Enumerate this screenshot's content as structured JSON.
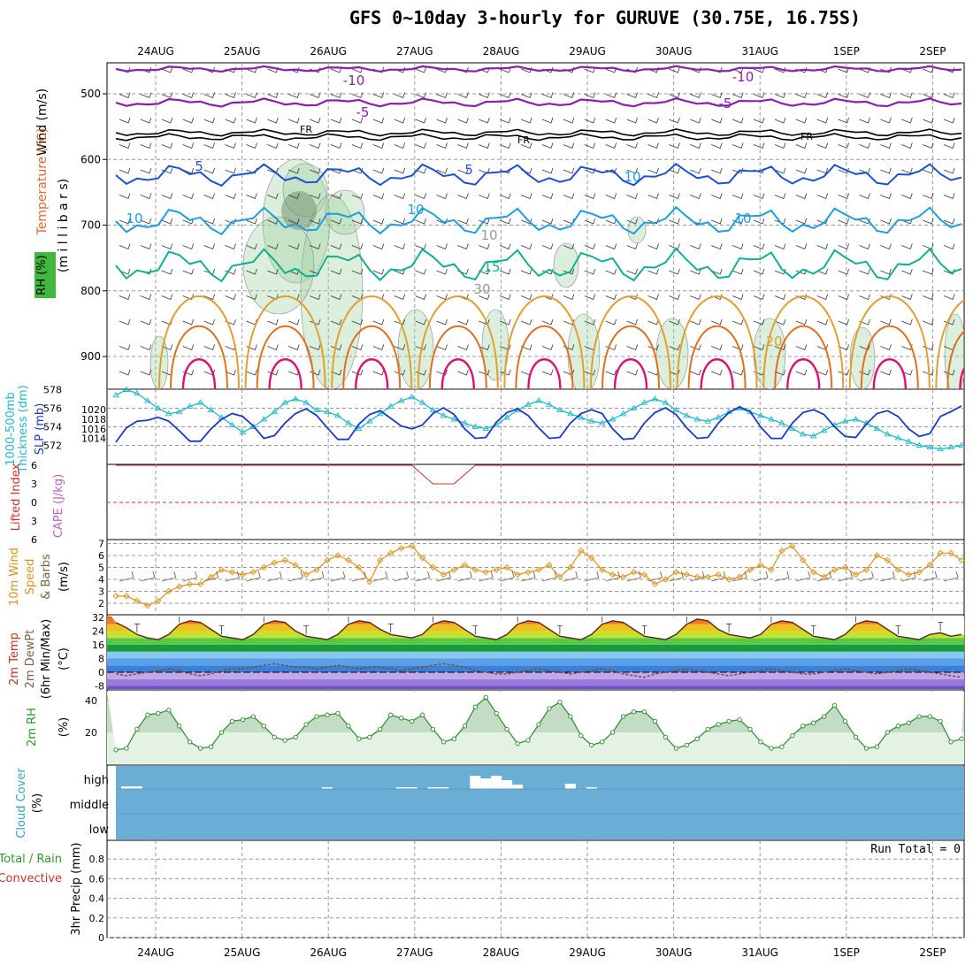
{
  "title": "GFS 0~10day 3-hourly for GURUVE (30.75E, 16.75S)",
  "colors": {
    "temp_m10": "#8a1fb0",
    "temp_m5": "#8a1fb0",
    "fr": "#000000",
    "temp_5": "#1e50d0",
    "temp_10": "#1e9ee0",
    "temp_15": "#10b090",
    "temp_20": "#e0a030",
    "temp_25": "#e07020",
    "temp_30": "#e01070",
    "thickness": "#20b8c8",
    "slp": "#1a3ac8",
    "lifted": "#d03030",
    "wind_speed": "#e0901a",
    "barb_brown": "#7a6040",
    "rh": "#2a9a2a",
    "cloud_bg": "#6aaed6",
    "grid": "#aaaaaa"
  },
  "dates": [
    "24AUG",
    "25AUG",
    "26AUG",
    "27AUG",
    "28AUG",
    "29AUG",
    "30AUG",
    "31AUG",
    "1SEP",
    "2SEP"
  ],
  "panels": {
    "upper": {
      "ylabel_wind": "Wind (m/s)",
      "ylabel_temp": "Temperature (°C)",
      "ylabel_mb": "(m i l l i b a r s)",
      "ylabel_rh": "RH (%)",
      "yticks": [
        "500",
        "600",
        "700",
        "800",
        "900"
      ],
      "contour_labels": [
        "-10",
        "-10",
        "-5",
        "-5",
        "FR",
        "FR",
        "FR",
        "5",
        "5",
        "10",
        "10",
        "10",
        "10",
        "15",
        "20",
        "10",
        "30"
      ]
    },
    "thick": {
      "ylabel_a": "1000-500mb",
      "ylabel_b": "Thickness (dm)",
      "ylabel_c": "SLP (mb)",
      "left_ticks": [
        "578",
        "576",
        "574",
        "572"
      ],
      "right_ticks": [
        "1020",
        "1018",
        "1016",
        "1014"
      ]
    },
    "cape": {
      "ylabel_a": "Lifted Index",
      "ylabel_b": "CAPE (J/kg)",
      "yticks": [
        "6",
        "3",
        "0",
        "3",
        "6"
      ]
    },
    "wind10": {
      "ylabel_a": "10m Wind",
      "ylabel_b": "Speed",
      "ylabel_c": "& Barbs",
      "ylabel_d": "(m/s)",
      "yticks": [
        "7",
        "6",
        "5",
        "4",
        "3",
        "2"
      ]
    },
    "temp2m": {
      "ylabel_a": "2m Temp",
      "ylabel_b": "2m DewPt",
      "ylabel_c": "(6hr Min/Max)",
      "ylabel_d": "(°C)",
      "yticks": [
        "32",
        "24",
        "16",
        "8",
        "0",
        "-8"
      ]
    },
    "rh2m": {
      "ylabel_a": "2m RH",
      "ylabel_b": "(%)",
      "yticks": [
        "40",
        "20"
      ]
    },
    "cloud": {
      "ylabel_a": "Cloud Cover",
      "ylabel_b": "(%)",
      "levels": [
        "high",
        "middle",
        "low"
      ]
    },
    "precip": {
      "ylabel_a": "Total / Rain",
      "ylabel_b": "Convective",
      "ylabel_c": "3hr Precip (mm)",
      "yticks": [
        "0.8",
        "0.6",
        "0.4",
        "0.2",
        "0"
      ],
      "run_total": "Run Total = 0"
    }
  },
  "chart_data": [
    {
      "type": "line",
      "name": "1000-500mb Thickness (dm)",
      "ylim": [
        571,
        579
      ],
      "x": [
        0,
        1,
        2,
        3,
        4,
        5,
        6,
        7,
        8,
        9,
        10,
        11,
        12,
        13,
        14,
        15,
        16,
        17,
        18,
        19,
        20,
        21,
        22,
        23,
        24,
        25,
        26,
        27,
        28,
        29,
        30,
        31,
        32,
        33,
        34,
        35,
        36,
        37,
        38,
        39,
        40,
        41,
        42,
        43,
        44,
        45,
        46,
        47,
        48,
        49,
        50,
        51,
        52,
        53,
        54,
        55,
        56,
        57,
        58,
        59,
        60,
        61,
        62,
        63,
        64,
        65,
        66,
        67,
        68,
        69,
        70,
        71,
        72,
        73,
        74,
        75,
        76,
        77,
        78,
        79,
        80
      ],
      "values": [
        577.4,
        578.0,
        577.6,
        576.8,
        576.0,
        575.4,
        575.6,
        576.2,
        576.6,
        575.8,
        575.0,
        574.2,
        573.4,
        574.0,
        574.8,
        575.6,
        576.6,
        577.0,
        576.6,
        575.8,
        575.6,
        575.2,
        574.4,
        573.8,
        574.6,
        575.4,
        576.2,
        576.8,
        577.2,
        576.6,
        575.8,
        575.2,
        574.8,
        574.4,
        574.0,
        573.8,
        574.2,
        575.0,
        575.8,
        576.4,
        576.8,
        576.4,
        575.8,
        575.4,
        575.0,
        574.6,
        574.4,
        574.8,
        575.4,
        576.0,
        576.6,
        577.0,
        576.6,
        575.8,
        575.2,
        574.8,
        574.6,
        575.0,
        575.6,
        576.0,
        575.6,
        575.2,
        574.8,
        574.4,
        573.8,
        573.2,
        573.0,
        573.6,
        574.2,
        574.6,
        574.8,
        574.4,
        573.8,
        573.2,
        572.8,
        572.4,
        572.0,
        571.8,
        571.6,
        571.8,
        572.0
      ]
    },
    {
      "type": "line",
      "name": "SLP (mb)",
      "ylim": [
        1012,
        1021.5
      ],
      "x": [
        0,
        1,
        2,
        3,
        4,
        5,
        6,
        7,
        8,
        9,
        10,
        11,
        12,
        13,
        14,
        15,
        16,
        17,
        18,
        19,
        20,
        21,
        22,
        23,
        24,
        25,
        26,
        27,
        28,
        29,
        30,
        31,
        32,
        33,
        34,
        35,
        36,
        37,
        38,
        39,
        40,
        41,
        42,
        43,
        44,
        45,
        46,
        47,
        48,
        49,
        50,
        51,
        52,
        53,
        54,
        55,
        56,
        57,
        58,
        59,
        60,
        61,
        62,
        63,
        64,
        65,
        66,
        67,
        68,
        69,
        70,
        71,
        72,
        73,
        74,
        75,
        76,
        77,
        78,
        79,
        80
      ],
      "values": [
        1013.2,
        1016.2,
        1017.6,
        1017.8,
        1018.4,
        1017.6,
        1015.6,
        1013.4,
        1013.4,
        1016.0,
        1018.0,
        1019.2,
        1018.6,
        1016.6,
        1014.0,
        1014.6,
        1017.2,
        1019.2,
        1020.2,
        1018.8,
        1016.2,
        1013.8,
        1013.8,
        1017.0,
        1019.0,
        1019.8,
        1018.2,
        1016.6,
        1016.0,
        1016.8,
        1019.2,
        1020.4,
        1019.0,
        1016.0,
        1014.0,
        1014.2,
        1017.4,
        1019.4,
        1020.2,
        1018.8,
        1016.2,
        1014.0,
        1014.2,
        1017.2,
        1019.2,
        1020.0,
        1019.2,
        1016.0,
        1013.8,
        1014.0,
        1017.2,
        1019.4,
        1020.4,
        1019.0,
        1016.2,
        1014.0,
        1014.2,
        1017.2,
        1019.4,
        1020.6,
        1019.6,
        1016.4,
        1014.0,
        1014.0,
        1017.2,
        1019.4,
        1020.0,
        1019.0,
        1016.4,
        1014.4,
        1014.2,
        1017.0,
        1019.2,
        1019.8,
        1018.6,
        1016.0,
        1014.4,
        1015.0,
        1018.6,
        1019.6,
        1020.8
      ]
    },
    {
      "type": "line",
      "name": "Lifted Index",
      "ylim": [
        -6,
        6
      ],
      "x": [
        0,
        28,
        29,
        30,
        31,
        32,
        33,
        34,
        80
      ],
      "values": [
        -6,
        -6,
        -4.5,
        -3,
        -3,
        -3,
        -4.5,
        -6,
        -6
      ]
    },
    {
      "type": "line",
      "name": "10m Wind Speed (m/s)",
      "ylim": [
        1.3,
        7.2
      ],
      "x": [
        0,
        1,
        2,
        3,
        4,
        5,
        6,
        7,
        8,
        9,
        10,
        11,
        12,
        13,
        14,
        15,
        16,
        17,
        18,
        19,
        20,
        21,
        22,
        23,
        24,
        25,
        26,
        27,
        28,
        29,
        30,
        31,
        32,
        33,
        34,
        35,
        36,
        37,
        38,
        39,
        40,
        41,
        42,
        43,
        44,
        45,
        46,
        47,
        48,
        49,
        50,
        51,
        52,
        53,
        54,
        55,
        56,
        57,
        58,
        59,
        60,
        61,
        62,
        63,
        64,
        65,
        66,
        67,
        68,
        69,
        70,
        71,
        72,
        73,
        74,
        75,
        76,
        77,
        78,
        79,
        80
      ],
      "values": [
        2.6,
        2.6,
        2.2,
        1.8,
        2.2,
        3.0,
        3.4,
        3.6,
        3.6,
        4.2,
        4.8,
        4.6,
        4.4,
        4.6,
        5.0,
        5.4,
        5.6,
        5.2,
        4.4,
        4.8,
        5.6,
        6.0,
        5.6,
        5.0,
        3.8,
        5.6,
        6.2,
        6.6,
        6.8,
        5.8,
        5.0,
        4.4,
        4.8,
        5.2,
        4.8,
        4.6,
        4.8,
        5.0,
        4.4,
        4.6,
        4.8,
        5.2,
        4.2,
        5.0,
        6.4,
        5.8,
        4.8,
        4.4,
        4.2,
        4.6,
        4.4,
        3.6,
        4.0,
        4.6,
        4.4,
        4.2,
        4.2,
        4.4,
        4.0,
        4.2,
        4.8,
        5.2,
        4.8,
        6.4,
        6.8,
        5.6,
        4.6,
        4.2,
        4.8,
        5.0,
        4.4,
        4.8,
        6.0,
        5.6,
        4.8,
        4.4,
        4.6,
        5.2,
        6.2,
        6.2,
        5.6
      ]
    },
    {
      "type": "area",
      "name": "2m Temp (°C)",
      "ylim": [
        -10,
        34
      ],
      "x": [
        0,
        1,
        2,
        3,
        4,
        5,
        6,
        7,
        8,
        9,
        10,
        11,
        12,
        13,
        14,
        15,
        16,
        17,
        18,
        19,
        20,
        21,
        22,
        23,
        24,
        25,
        26,
        27,
        28,
        29,
        30,
        31,
        32,
        33,
        34,
        35,
        36,
        37,
        38,
        39,
        40,
        41,
        42,
        43,
        44,
        45,
        46,
        47,
        48,
        49,
        50,
        51,
        52,
        53,
        54,
        55,
        56,
        57,
        58,
        59,
        60,
        61,
        62,
        63,
        64,
        65,
        66,
        67,
        68,
        69,
        70,
        71,
        72,
        73,
        74,
        75,
        76,
        77,
        78,
        79,
        80
      ],
      "values": [
        29,
        26,
        22,
        20,
        19,
        22,
        28,
        30,
        29,
        25,
        21,
        20,
        19,
        22,
        28,
        30,
        29,
        24,
        21,
        20,
        19,
        22,
        28,
        30,
        29,
        25,
        22,
        21,
        20,
        22,
        28,
        30,
        29,
        25,
        21,
        20,
        19,
        22,
        28,
        30,
        29,
        25,
        21,
        20,
        19,
        22,
        28,
        30,
        29,
        25,
        21,
        20,
        19,
        22,
        28,
        31,
        30,
        25,
        22,
        21,
        20,
        22,
        28,
        30,
        29,
        25,
        21,
        20,
        19,
        22,
        28,
        30,
        29,
        25,
        21,
        20,
        19,
        22,
        23,
        21,
        22
      ]
    },
    {
      "type": "line",
      "name": "2m DewPt (°C)",
      "ylim": [
        -10,
        34
      ],
      "x": [
        0,
        1,
        2,
        3,
        4,
        5,
        6,
        7,
        8,
        9,
        10,
        11,
        12,
        13,
        14,
        15,
        16,
        17,
        18,
        19,
        20,
        21,
        22,
        23,
        24,
        25,
        26,
        27,
        28,
        29,
        30,
        31,
        32,
        33,
        34,
        35,
        36,
        37,
        38,
        39,
        40,
        41,
        42,
        43,
        44,
        45,
        46,
        47,
        48,
        49,
        50,
        51,
        52,
        53,
        54,
        55,
        56,
        57,
        58,
        59,
        60,
        61,
        62,
        63,
        64,
        65,
        66,
        67,
        68,
        69,
        70,
        71,
        72,
        73,
        74,
        75,
        76,
        77,
        78,
        79,
        80
      ],
      "values": [
        -1,
        -2,
        -1,
        0,
        1,
        2,
        1,
        -1,
        -2,
        -1,
        1,
        2,
        2,
        3,
        4,
        5,
        4,
        3,
        3,
        2,
        3,
        4,
        3,
        2,
        3,
        3,
        2,
        1,
        2,
        3,
        4,
        5,
        4,
        3,
        1,
        0,
        -1,
        -1,
        0,
        1,
        2,
        1,
        0,
        -1,
        0,
        1,
        2,
        1,
        -1,
        -2,
        -3,
        -1,
        0,
        1,
        2,
        1,
        0,
        -1,
        -2,
        -1,
        0,
        1,
        2,
        1,
        0,
        -1,
        -1,
        0,
        1,
        2,
        1,
        0,
        -1,
        0,
        1,
        2,
        1,
        0,
        -1,
        -2,
        -3
      ]
    },
    {
      "type": "area",
      "name": "2m RH (%)",
      "ylim": [
        5,
        46
      ],
      "x": [
        0,
        1,
        2,
        3,
        4,
        5,
        6,
        7,
        8,
        9,
        10,
        11,
        12,
        13,
        14,
        15,
        16,
        17,
        18,
        19,
        20,
        21,
        22,
        23,
        24,
        25,
        26,
        27,
        28,
        29,
        30,
        31,
        32,
        33,
        34,
        35,
        36,
        37,
        38,
        39,
        40,
        41,
        42,
        43,
        44,
        45,
        46,
        47,
        48,
        49,
        50,
        51,
        52,
        53,
        54,
        55,
        56,
        57,
        58,
        59,
        60,
        61,
        62,
        63,
        64,
        65,
        66,
        67,
        68,
        69,
        70,
        71,
        72,
        73,
        74,
        75,
        76,
        77,
        78,
        79,
        80
      ],
      "values": [
        9,
        10,
        22,
        31,
        32,
        34,
        24,
        14,
        10,
        11,
        20,
        27,
        28,
        30,
        24,
        17,
        15,
        17,
        25,
        30,
        31,
        32,
        24,
        16,
        17,
        22,
        31,
        29,
        27,
        31,
        22,
        14,
        16,
        24,
        36,
        42,
        32,
        22,
        13,
        15,
        25,
        35,
        39,
        30,
        18,
        12,
        14,
        20,
        30,
        33,
        33,
        27,
        17,
        10,
        12,
        16,
        22,
        25,
        27,
        28,
        22,
        14,
        10,
        11,
        18,
        24,
        26,
        30,
        37,
        27,
        17,
        10,
        11,
        20,
        24,
        26,
        30,
        30,
        27,
        14,
        16
      ]
    },
    {
      "type": "bar",
      "name": "High Cloud Cover",
      "x": [
        1,
        2,
        20,
        27,
        28,
        30,
        31,
        34,
        35,
        36,
        37,
        38,
        43,
        45
      ],
      "values": [
        3,
        3,
        2,
        2,
        2,
        2,
        2,
        15,
        12,
        15,
        10,
        5,
        6,
        2
      ]
    },
    {
      "type": "bar",
      "name": "3hr Precip (mm)",
      "ylim": [
        0,
        0.9
      ],
      "values": []
    }
  ]
}
